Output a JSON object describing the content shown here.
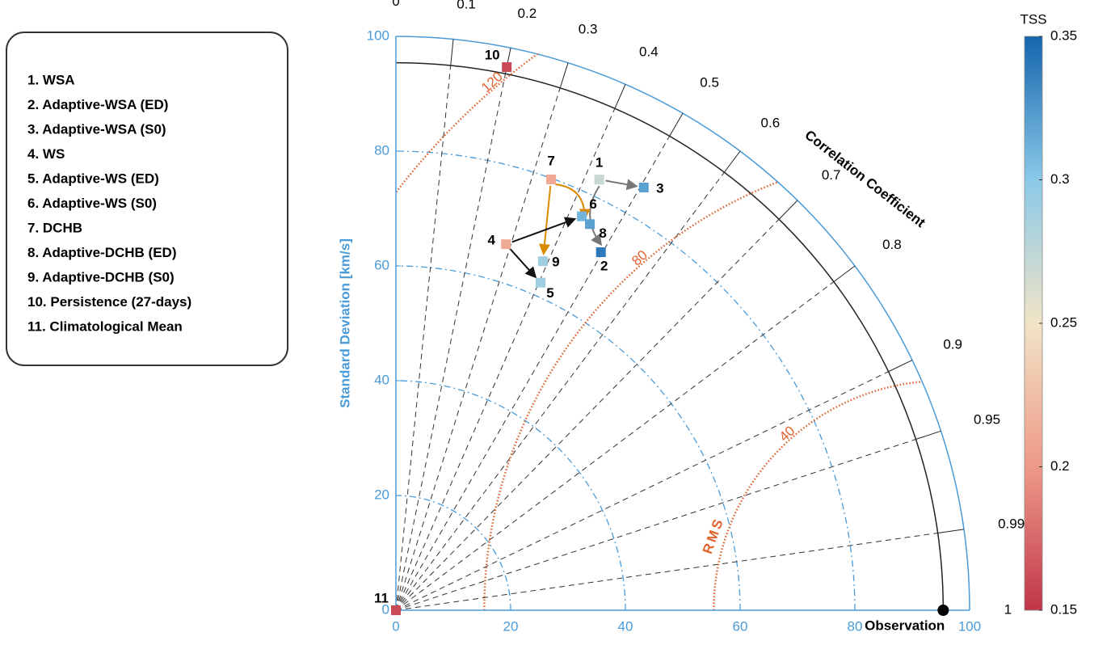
{
  "chart_data": {
    "type": "taylor",
    "y_label": "Standard Deviation [km/s]",
    "angle_label": "Correlation Coefficient",
    "rms_label": "RMS",
    "legend": [
      "1. WSA",
      "2. Adaptive-WSA (ED)",
      "3. Adaptive-WSA (S0)",
      "4. WS",
      "5. Adaptive-WS (ED)",
      "6. Adaptive-WS (S0)",
      "7. DCHB",
      "8. Adaptive-DCHB (ED)",
      "9. Adaptive-DCHB (S0)",
      "10. Persistence (27-days)",
      "11. Climatological Mean"
    ],
    "rlim": [
      0,
      100
    ],
    "rticks": [
      0,
      20,
      40,
      60,
      80,
      100
    ],
    "std_circles": [
      20,
      40,
      60,
      80
    ],
    "corr_ticks": [
      0,
      0.1,
      0.2,
      0.3,
      0.4,
      0.5,
      0.6,
      0.7,
      0.8,
      0.9,
      0.95,
      0.99,
      1
    ],
    "observation": {
      "label": "Observation",
      "std": 95.4
    },
    "rms_contours": [
      40,
      80,
      120
    ],
    "colorbar_title": "TSS",
    "clim": [
      0.15,
      0.35
    ],
    "cticks": [
      0.15,
      0.2,
      0.25,
      0.3,
      0.35
    ],
    "colormap": [
      "#c0364a",
      "#ee9a88",
      "#f1e4c6",
      "#8ac9e8",
      "#1565ad"
    ],
    "points": [
      {
        "label": "1",
        "std": 83.0,
        "corr": 0.427,
        "tss": 0.27
      },
      {
        "label": "2",
        "std": 71.9,
        "corr": 0.497,
        "tss": 0.34
      },
      {
        "label": "3",
        "std": 85.4,
        "corr": 0.506,
        "tss": 0.32
      },
      {
        "label": "4",
        "std": 66.6,
        "corr": 0.288,
        "tss": 0.21
      },
      {
        "label": "5",
        "std": 62.4,
        "corr": 0.404,
        "tss": 0.29
      },
      {
        "label": "6",
        "std": 75.9,
        "corr": 0.427,
        "tss": 0.31
      },
      {
        "label": "7",
        "std": 79.8,
        "corr": 0.339,
        "tss": 0.21
      },
      {
        "label": "8",
        "std": 75.3,
        "corr": 0.449,
        "tss": 0.32
      },
      {
        "label": "9",
        "std": 66.0,
        "corr": 0.388,
        "tss": 0.29
      },
      {
        "label": "10",
        "std": 96.6,
        "corr": 0.2,
        "tss": 0.16
      },
      {
        "label": "11",
        "std": 0,
        "corr": 0,
        "tss": 0.16
      }
    ]
  }
}
